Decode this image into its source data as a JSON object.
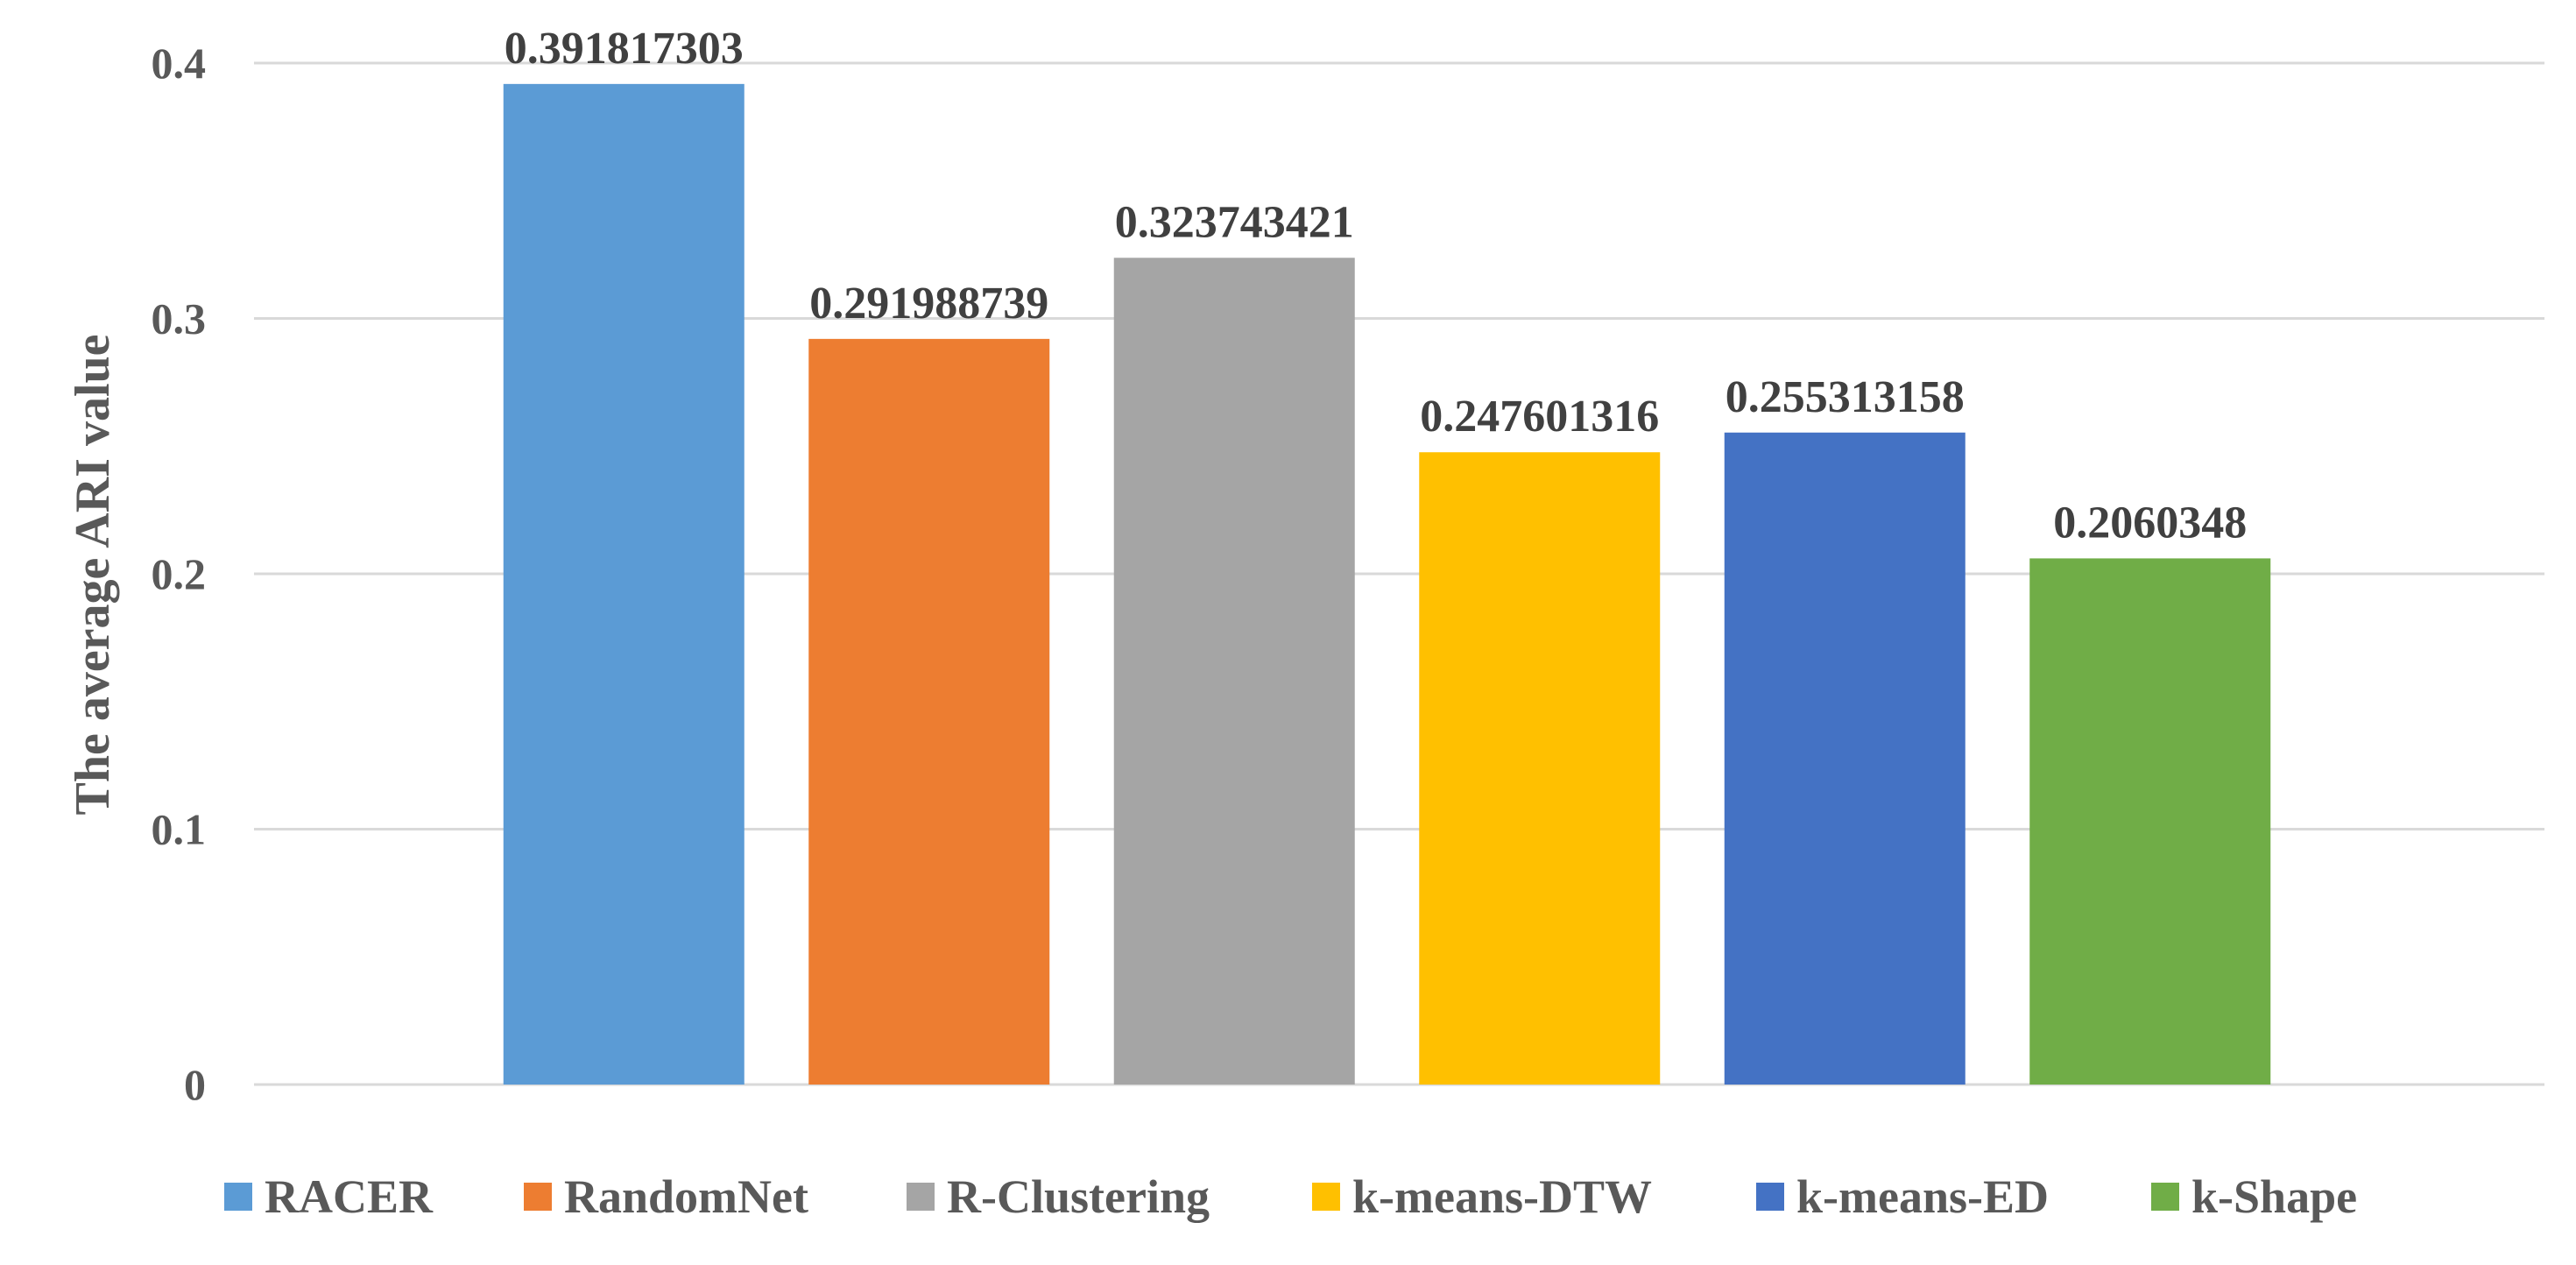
{
  "chart_data": {
    "type": "bar",
    "title": "",
    "xlabel": "",
    "ylabel": "The average ARI value",
    "ylim": [
      0,
      0.4
    ],
    "yticks": [
      0,
      0.1,
      0.2,
      0.3,
      0.4
    ],
    "ytick_labels": [
      "0",
      "0.1",
      "0.2",
      "0.3",
      "0.4"
    ],
    "grid": true,
    "legend_position": "bottom",
    "series": [
      {
        "name": "RACER",
        "value": 0.391817303,
        "label": "0.391817303",
        "color": "#5b9bd5"
      },
      {
        "name": "RandomNet",
        "value": 0.291988739,
        "label": "0.291988739",
        "color": "#ed7d31"
      },
      {
        "name": "R-Clustering",
        "value": 0.323743421,
        "label": "0.323743421",
        "color": "#a5a5a5"
      },
      {
        "name": "k-means-DTW",
        "value": 0.247601316,
        "label": "0.247601316",
        "color": "#ffc000"
      },
      {
        "name": "k-means-ED",
        "value": 0.255313158,
        "label": "0.255313158",
        "color": "#4472c4"
      },
      {
        "name": "k-Shape",
        "value": 0.2060348,
        "label": "0.2060348",
        "color": "#70ad47"
      }
    ]
  }
}
